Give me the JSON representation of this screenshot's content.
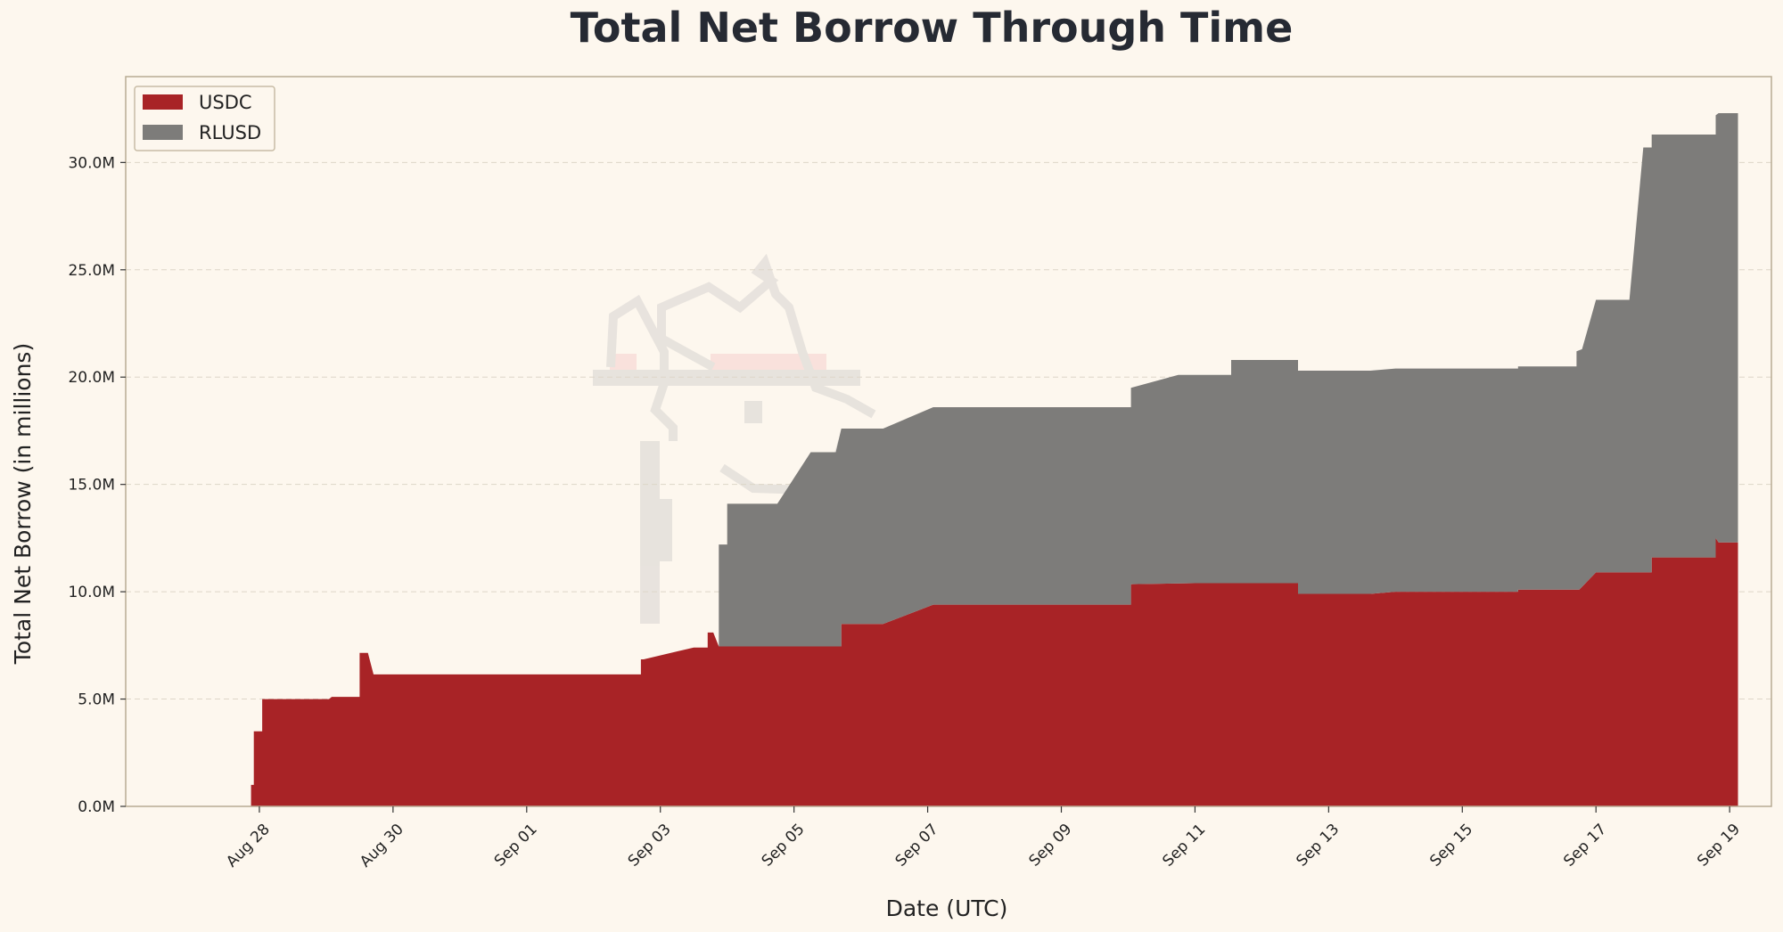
{
  "chart_data": {
    "type": "area",
    "stacked": true,
    "title": "Total Net Borrow Through Time",
    "xlabel": "Date (UTC)",
    "ylabel": "Total Net Borrow (in millions)",
    "x_range": [
      "2025-08-26T00:00",
      "2025-09-19T15:00"
    ],
    "ylim": [
      0,
      34
    ],
    "y_ticks": [
      0,
      5,
      10,
      15,
      20,
      25,
      30
    ],
    "y_tick_labels": [
      "0.0M",
      "5.0M",
      "10.0M",
      "15.0M",
      "20.0M",
      "25.0M",
      "30.0M"
    ],
    "x_ticks": [
      "2025-08-28",
      "2025-08-30",
      "2025-09-01",
      "2025-09-03",
      "2025-09-05",
      "2025-09-07",
      "2025-09-09",
      "2025-09-11",
      "2025-09-13",
      "2025-09-15",
      "2025-09-17",
      "2025-09-19"
    ],
    "x_tick_labels": [
      "Aug 28",
      "Aug 30",
      "Sep 01",
      "Sep 03",
      "Sep 05",
      "Sep 07",
      "Sep 09",
      "Sep 11",
      "Sep 13",
      "Sep 15",
      "Sep 17",
      "Sep 19"
    ],
    "grid": "y-dashed",
    "legend_position": "top-left",
    "series": [
      {
        "name": "USDC",
        "color": "#a82326",
        "points": [
          [
            "2025-08-27T21:00",
            0
          ],
          [
            "2025-08-27T21:00",
            1.0
          ],
          [
            "2025-08-27T22:00",
            1.0
          ],
          [
            "2025-08-27T22:00",
            3.5
          ],
          [
            "2025-08-28T01:00",
            3.5
          ],
          [
            "2025-08-28T01:00",
            5.0
          ],
          [
            "2025-08-29T01:00",
            5.0
          ],
          [
            "2025-08-29T02:00",
            5.1
          ],
          [
            "2025-08-29T12:00",
            5.1
          ],
          [
            "2025-08-29T12:00",
            7.15
          ],
          [
            "2025-08-29T15:00",
            7.15
          ],
          [
            "2025-08-29T17:00",
            6.15
          ],
          [
            "2025-09-02T17:00",
            6.15
          ],
          [
            "2025-09-02T17:00",
            6.85
          ],
          [
            "2025-09-02T18:00",
            6.85
          ],
          [
            "2025-09-03T12:00",
            7.4
          ],
          [
            "2025-09-03T17:00",
            7.4
          ],
          [
            "2025-09-03T17:00",
            8.1
          ],
          [
            "2025-09-03T19:00",
            8.1
          ],
          [
            "2025-09-03T21:00",
            7.45
          ],
          [
            "2025-09-05T17:00",
            7.45
          ],
          [
            "2025-09-05T17:00",
            8.5
          ],
          [
            "2025-09-06T08:00",
            8.5
          ],
          [
            "2025-09-07T02:00",
            9.4
          ],
          [
            "2025-09-10T01:00",
            9.4
          ],
          [
            "2025-09-10T01:00",
            10.35
          ],
          [
            "2025-09-11T00:00",
            10.4
          ],
          [
            "2025-09-12T13:00",
            10.4
          ],
          [
            "2025-09-12T13:00",
            9.9
          ],
          [
            "2025-09-13T15:00",
            9.9
          ],
          [
            "2025-09-14T00:00",
            10.0
          ],
          [
            "2025-09-15T20:00",
            10.0
          ],
          [
            "2025-09-15T20:00",
            10.1
          ],
          [
            "2025-09-16T18:00",
            10.1
          ],
          [
            "2025-09-17T00:00",
            10.9
          ],
          [
            "2025-09-17T20:00",
            10.9
          ],
          [
            "2025-09-17T20:00",
            11.6
          ],
          [
            "2025-09-18T19:00",
            11.6
          ],
          [
            "2025-09-18T19:00",
            12.5
          ],
          [
            "2025-09-18T20:00",
            12.3
          ],
          [
            "2025-09-19T03:00",
            12.3
          ]
        ]
      },
      {
        "name": "RLUSD",
        "color": "#7d7c7a",
        "stack_total_points": [
          [
            "2025-09-03T21:00",
            7.45
          ],
          [
            "2025-09-03T21:00",
            12.2
          ],
          [
            "2025-09-04T00:00",
            12.2
          ],
          [
            "2025-09-04T00:00",
            14.1
          ],
          [
            "2025-09-04T18:00",
            14.1
          ],
          [
            "2025-09-05T06:00",
            16.5
          ],
          [
            "2025-09-05T15:00",
            16.5
          ],
          [
            "2025-09-05T17:00",
            17.6
          ],
          [
            "2025-09-06T08:00",
            17.6
          ],
          [
            "2025-09-07T02:00",
            18.6
          ],
          [
            "2025-09-10T01:00",
            18.6
          ],
          [
            "2025-09-10T01:00",
            19.5
          ],
          [
            "2025-09-10T18:00",
            20.1
          ],
          [
            "2025-09-11T13:00",
            20.1
          ],
          [
            "2025-09-11T13:00",
            20.8
          ],
          [
            "2025-09-12T13:00",
            20.8
          ],
          [
            "2025-09-12T13:00",
            20.3
          ],
          [
            "2025-09-13T15:00",
            20.3
          ],
          [
            "2025-09-14T00:00",
            20.4
          ],
          [
            "2025-09-15T20:00",
            20.4
          ],
          [
            "2025-09-15T20:00",
            20.5
          ],
          [
            "2025-09-16T17:00",
            20.5
          ],
          [
            "2025-09-16T17:00",
            21.2
          ],
          [
            "2025-09-16T19:00",
            21.3
          ],
          [
            "2025-09-17T00:00",
            23.6
          ],
          [
            "2025-09-17T12:00",
            23.6
          ],
          [
            "2025-09-17T17:00",
            30.7
          ],
          [
            "2025-09-17T20:00",
            30.7
          ],
          [
            "2025-09-17T20:00",
            31.3
          ],
          [
            "2025-09-18T19:00",
            31.3
          ],
          [
            "2025-09-18T19:00",
            32.2
          ],
          [
            "2025-09-18T20:00",
            32.3
          ],
          [
            "2025-09-19T03:00",
            32.3
          ]
        ]
      }
    ]
  },
  "colors": {
    "background": "#fdf7ee",
    "frame": "#b8ab93",
    "grid": "#ddd6c8",
    "title": "#262a33"
  }
}
